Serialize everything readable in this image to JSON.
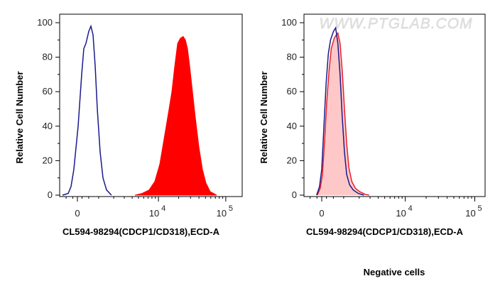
{
  "chart_data": [
    {
      "type": "area",
      "panel": "left",
      "xlabel": "CL594-98294(CDCP1/CD318),ECD-A",
      "ylabel": "Relative Cell Number",
      "x_scale": "biexponential",
      "xticks": [
        {
          "value": 0,
          "label": "0",
          "exp": ""
        },
        {
          "value": 10000,
          "label": "10",
          "exp": "4"
        },
        {
          "value": 100000,
          "label": "10",
          "exp": "5"
        }
      ],
      "ylim": [
        0,
        100
      ],
      "yticks": [
        0,
        20,
        40,
        60,
        80,
        100
      ],
      "grid": false,
      "series": [
        {
          "color": "#1a1a8c",
          "style": "line",
          "points": [
            [
              -672,
              0
            ],
            [
              -405,
              1
            ],
            [
              -278,
              5
            ],
            [
              -154,
              15
            ],
            [
              31,
              40
            ],
            [
              185,
              70
            ],
            [
              278,
              85
            ],
            [
              373,
              88
            ],
            [
              503,
              95
            ],
            [
              603,
              98
            ],
            [
              707,
              93
            ],
            [
              815,
              75
            ],
            [
              926,
              50
            ],
            [
              1083,
              25
            ],
            [
              1251,
              10
            ],
            [
              1475,
              3
            ],
            [
              1822,
              0
            ]
          ]
        },
        {
          "color": "#ff0000",
          "style": "filled",
          "points": [
            [
              4415,
              0
            ],
            [
              5675,
              1
            ],
            [
              7263,
              3
            ],
            [
              8835,
              8
            ],
            [
              10490,
              18
            ],
            [
              12450,
              35
            ],
            [
              14420,
              50
            ],
            [
              15880,
              60
            ],
            [
              17510,
              75
            ],
            [
              19290,
              88
            ],
            [
              21250,
              91
            ],
            [
              23400,
              92
            ],
            [
              25170,
              90
            ],
            [
              27070,
              85
            ],
            [
              29100,
              75
            ],
            [
              32100,
              60
            ],
            [
              35300,
              45
            ],
            [
              39900,
              28
            ],
            [
              45000,
              15
            ],
            [
              50800,
              7
            ],
            [
              58800,
              2
            ],
            [
              73200,
              0
            ]
          ]
        }
      ]
    },
    {
      "type": "area",
      "panel": "right",
      "xlabel": "CL594-98294(CDCP1/CD318),ECD-A",
      "ylabel": "Relative Cell Number",
      "x_scale": "biexponential",
      "xticks": [
        {
          "value": 0,
          "label": "0",
          "exp": ""
        },
        {
          "value": 10000,
          "label": "10",
          "exp": "4"
        },
        {
          "value": 100000,
          "label": "10",
          "exp": "5"
        }
      ],
      "ylim": [
        0,
        100
      ],
      "yticks": [
        0,
        20,
        40,
        60,
        80,
        100
      ],
      "grid": false,
      "watermark": "WWW.PTGLAB.COM",
      "caption": "Negative cells",
      "series": [
        {
          "color": "#e8202a",
          "fill": "#ffc8c8",
          "style": "filled-outline",
          "points": [
            [
              -184,
              0
            ],
            [
              -61,
              4
            ],
            [
              31,
              12
            ],
            [
              123,
              32
            ],
            [
              216,
              55
            ],
            [
              309,
              72
            ],
            [
              405,
              85
            ],
            [
              537,
              91
            ],
            [
              637,
              93
            ],
            [
              707,
              94
            ],
            [
              815,
              88
            ],
            [
              926,
              72
            ],
            [
              1042,
              50
            ],
            [
              1165,
              30
            ],
            [
              1293,
              16
            ],
            [
              1475,
              8
            ],
            [
              1718,
              4
            ],
            [
              2040,
              2
            ],
            [
              2510,
              0.5
            ],
            [
              2900,
              0
            ]
          ]
        },
        {
          "color": "#1a1a8c",
          "style": "line",
          "points": [
            [
              -215,
              0
            ],
            [
              -92,
              5
            ],
            [
              0,
              15
            ],
            [
              92,
              40
            ],
            [
              185,
              65
            ],
            [
              278,
              82
            ],
            [
              373,
              90
            ],
            [
              503,
              95
            ],
            [
              603,
              97
            ],
            [
              707,
              88
            ],
            [
              815,
              70
            ],
            [
              926,
              45
            ],
            [
              1042,
              25
            ],
            [
              1165,
              12
            ],
            [
              1337,
              6
            ],
            [
              1570,
              3
            ],
            [
              1930,
              1
            ],
            [
              2390,
              0
            ]
          ]
        }
      ]
    }
  ]
}
